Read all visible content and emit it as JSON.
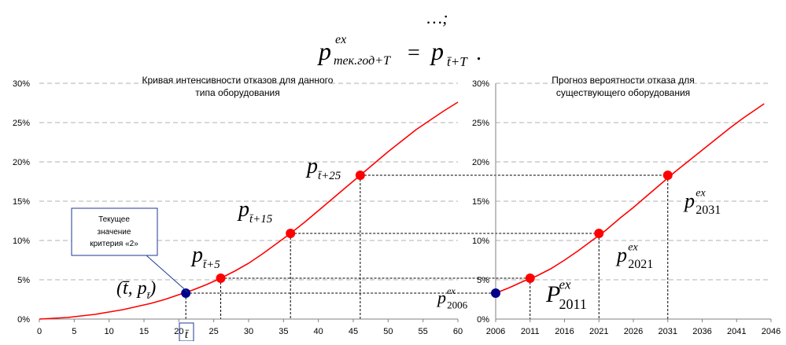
{
  "formula": {
    "line1": "…;",
    "lhs_base": "p",
    "lhs_sup": "ex",
    "lhs_sub": "тек.год+T",
    "eq": "=",
    "rhs_base": "p",
    "rhs_sub": "t̄+T",
    "end": "."
  },
  "callout": {
    "text_lines": [
      "Текущее",
      "значение",
      "критерия «2»"
    ]
  },
  "chart_data": [
    {
      "type": "line",
      "title_lines": [
        "Кривая интенсивности отказов для данного",
        "типа оборудования"
      ],
      "xlabel": "",
      "ylabel": "",
      "xlim": [
        0,
        60
      ],
      "ylim": [
        0,
        0.3
      ],
      "x_ticks": [
        "0",
        "5",
        "10",
        "15",
        "20",
        "25",
        "30",
        "35",
        "40",
        "45",
        "50",
        "55",
        "60"
      ],
      "x_tick_values": [
        0,
        5,
        10,
        15,
        20,
        25,
        30,
        35,
        40,
        45,
        50,
        55,
        60
      ],
      "y_ticks": [
        "0%",
        "5%",
        "10%",
        "15%",
        "20%",
        "25%",
        "30%"
      ],
      "y_tick_values": [
        0,
        0.05,
        0.1,
        0.15,
        0.2,
        0.25,
        0.3
      ],
      "special_tick": {
        "label": "t̄",
        "x": 21
      },
      "grid": "horizontal-dashed",
      "color": "#ff0000",
      "series": [
        {
          "x": [
            0,
            2,
            4,
            6,
            8,
            10,
            12,
            14,
            16,
            18,
            20,
            22,
            24,
            26,
            28,
            30,
            32,
            34,
            36,
            38,
            40,
            42,
            44,
            46,
            48,
            50,
            52,
            54,
            56,
            58,
            60
          ],
          "y": [
            0,
            0.001,
            0.002,
            0.004,
            0.006,
            0.009,
            0.012,
            0.016,
            0.02,
            0.025,
            0.031,
            0.037,
            0.044,
            0.052,
            0.061,
            0.071,
            0.083,
            0.096,
            0.109,
            0.123,
            0.138,
            0.153,
            0.168,
            0.183,
            0.198,
            0.213,
            0.227,
            0.241,
            0.253,
            0.265,
            0.276
          ]
        }
      ],
      "points": [
        {
          "x": 21,
          "y": 0.033,
          "color": "#00008b",
          "label_main": "(t̄, p",
          "label_sub": "t̄",
          "label_end": ")"
        },
        {
          "x": 26,
          "y": 0.052,
          "color": "#ff0000",
          "label_main": "p",
          "label_sub": "t̄+5",
          "label_end": ""
        },
        {
          "x": 36,
          "y": 0.109,
          "color": "#ff0000",
          "label_main": "p",
          "label_sub": "t̄+15",
          "label_end": ""
        },
        {
          "x": 46,
          "y": 0.183,
          "color": "#ff0000",
          "label_main": "p",
          "label_sub": "t̄+25",
          "label_end": ""
        }
      ]
    },
    {
      "type": "line",
      "title_lines": [
        "Прогноз вероятности отказа для",
        "существующего оборудования"
      ],
      "xlabel": "",
      "ylabel": "",
      "xlim": [
        2006,
        2046
      ],
      "ylim": [
        0,
        0.3
      ],
      "x_ticks": [
        "2006",
        "2011",
        "2016",
        "2021",
        "2026",
        "2031",
        "2036",
        "2041",
        "2046"
      ],
      "x_tick_values": [
        2006,
        2011,
        2016,
        2021,
        2026,
        2031,
        2036,
        2041,
        2046
      ],
      "y_ticks": [
        "0%",
        "5%",
        "10%",
        "15%",
        "20%",
        "25%",
        "30%"
      ],
      "y_tick_values": [
        0,
        0.05,
        0.1,
        0.15,
        0.2,
        0.25,
        0.3
      ],
      "grid": "horizontal-dashed",
      "color": "#ff0000",
      "series": [
        {
          "x": [
            2006,
            2008,
            2010,
            2012,
            2014,
            2016,
            2018,
            2020,
            2022,
            2024,
            2026,
            2028,
            2030,
            2032,
            2034,
            2036,
            2038,
            2040,
            2042,
            2044,
            2045
          ],
          "y": [
            0.033,
            0.04,
            0.048,
            0.055,
            0.064,
            0.075,
            0.087,
            0.1,
            0.113,
            0.128,
            0.142,
            0.157,
            0.172,
            0.187,
            0.201,
            0.215,
            0.229,
            0.243,
            0.256,
            0.268,
            0.274
          ]
        }
      ],
      "points": [
        {
          "x": 2006,
          "y": 0.033,
          "color": "#00008b",
          "label_main": "p",
          "label_sup": "ex",
          "label_sub": "2006"
        },
        {
          "x": 2011,
          "y": 0.052,
          "color": "#ff0000",
          "label_main": "P",
          "label_sup": "ex",
          "label_sub": "2011"
        },
        {
          "x": 2021,
          "y": 0.109,
          "color": "#ff0000",
          "label_main": "p",
          "label_sup": "ex",
          "label_sub": "2021"
        },
        {
          "x": 2031,
          "y": 0.183,
          "color": "#ff0000",
          "label_main": "p",
          "label_sup": "ex",
          "label_sub": "2031"
        }
      ]
    }
  ]
}
